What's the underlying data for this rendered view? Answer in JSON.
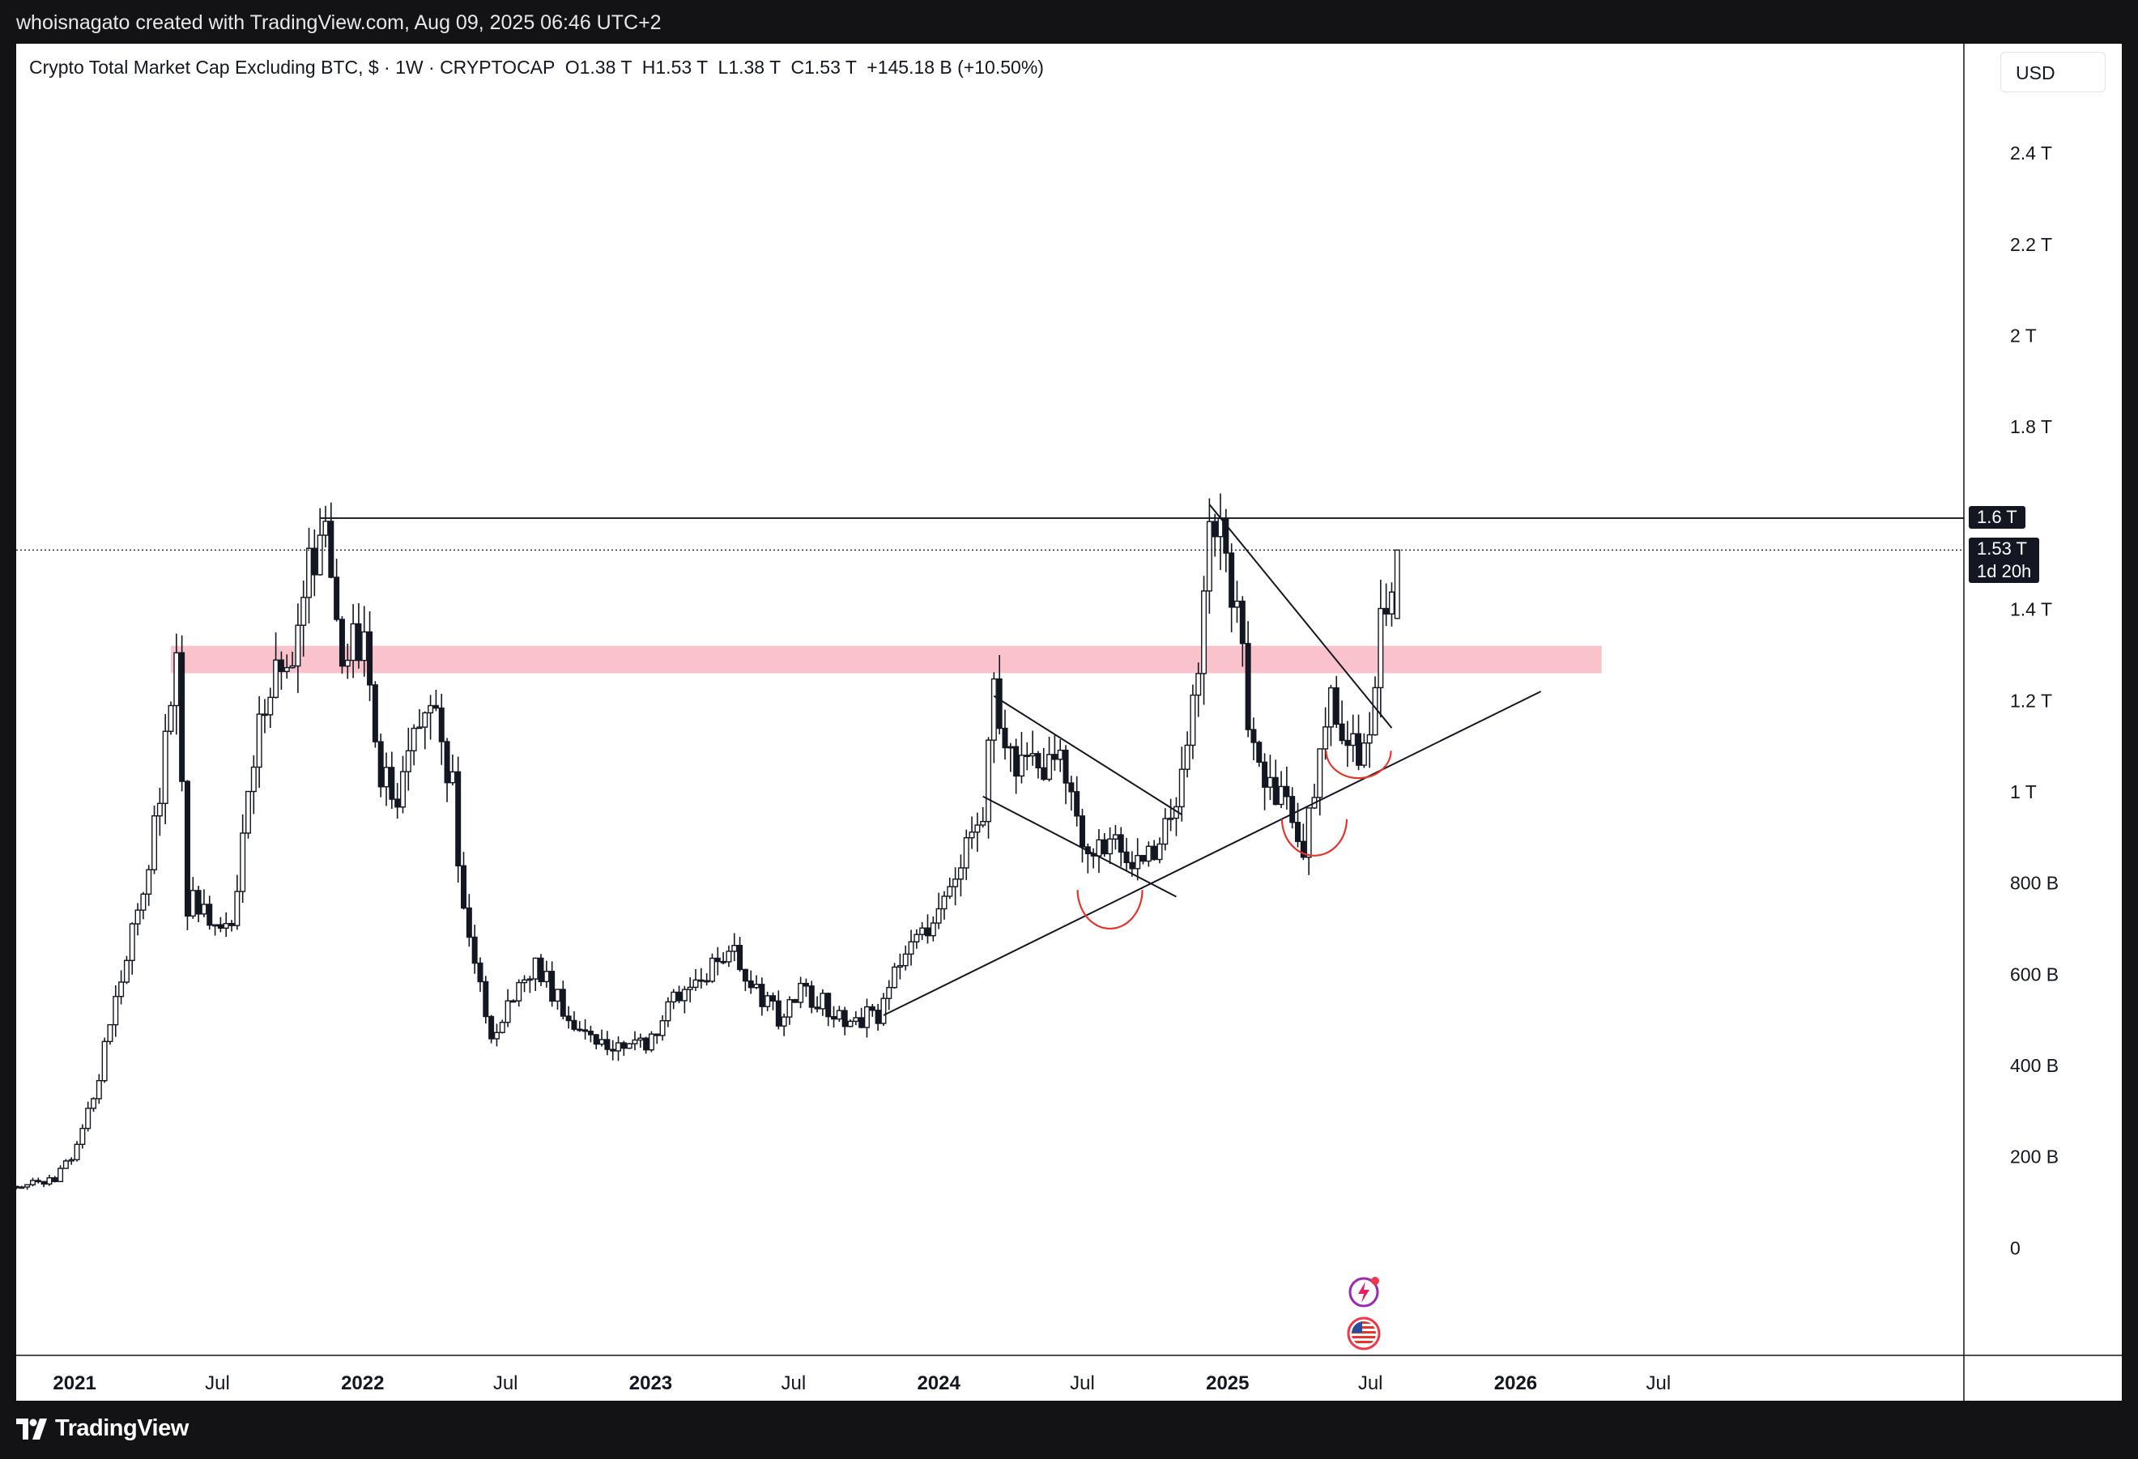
{
  "header": {
    "credit": "whoisnagato created with TradingView.com, Aug 09, 2025 06:46 UTC+2"
  },
  "legend": {
    "title": "Crypto Total Market Cap Excluding BTC, $",
    "interval": "1W",
    "exchange": "CRYPTOCAP",
    "open": "O1.38 T",
    "high": "H1.53 T",
    "low": "L1.38 T",
    "close": "C1.53 T",
    "change": "+145.18 B (+10.50%)"
  },
  "toolbar": {
    "currency_label": "USD"
  },
  "brand": {
    "name": "TradingView"
  },
  "price_tags": {
    "level_label": "1.6 T",
    "last_price": "1.53 T",
    "countdown": "1d 20h"
  },
  "icons": {
    "events": [
      "lightning-event-icon",
      "us-flag-event-icon"
    ]
  },
  "colors": {
    "frame": "#131315",
    "plot_background": "#ffffff",
    "candle": "#131722",
    "zone": "#f7a1ad",
    "arc": "#e5352b",
    "tag": "#131722"
  },
  "chart_data": {
    "type": "candlestick",
    "title": "Crypto Total Market Cap Excluding BTC, $",
    "interval": "1W",
    "source": "CRYPTOCAP",
    "currency": "USD",
    "y_axis": {
      "ticks": [
        {
          "value": 0,
          "label": "0"
        },
        {
          "value": 200,
          "label": "200 B"
        },
        {
          "value": 400,
          "label": "400 B"
        },
        {
          "value": 600,
          "label": "600 B"
        },
        {
          "value": 800,
          "label": "800 B"
        },
        {
          "value": 1000,
          "label": "1 T"
        },
        {
          "value": 1200,
          "label": "1.2 T"
        },
        {
          "value": 1400,
          "label": "1.4 T"
        },
        {
          "value": 1800,
          "label": "1.8 T"
        },
        {
          "value": 2000,
          "label": "2 T"
        },
        {
          "value": 2200,
          "label": "2.2 T"
        },
        {
          "value": 2400,
          "label": "2.4 T"
        }
      ],
      "range": [
        -200,
        2640
      ],
      "unit": "billion USD"
    },
    "x_axis": {
      "ticks": [
        {
          "date": "2021-01-01",
          "label": "2021",
          "bold": true
        },
        {
          "date": "2021-07-01",
          "label": "Jul",
          "bold": false
        },
        {
          "date": "2022-01-01",
          "label": "2022",
          "bold": true
        },
        {
          "date": "2022-07-01",
          "label": "Jul",
          "bold": false
        },
        {
          "date": "2023-01-01",
          "label": "2023",
          "bold": true
        },
        {
          "date": "2023-07-01",
          "label": "Jul",
          "bold": false
        },
        {
          "date": "2024-01-01",
          "label": "2024",
          "bold": true
        },
        {
          "date": "2024-07-01",
          "label": "Jul",
          "bold": false
        },
        {
          "date": "2025-01-01",
          "label": "2025",
          "bold": true
        },
        {
          "date": "2025-07-01",
          "label": "Jul",
          "bold": false
        },
        {
          "date": "2026-01-01",
          "label": "2026",
          "bold": true
        },
        {
          "date": "2026-07-01",
          "label": "Jul",
          "bold": false
        }
      ],
      "range": [
        "2020-10-19",
        "2026-08-03"
      ]
    },
    "anchors": [
      [
        "2020-10-19",
        135
      ],
      [
        "2020-12-07",
        150
      ],
      [
        "2021-01-04",
        220
      ],
      [
        "2021-02-01",
        380
      ],
      [
        "2021-02-22",
        560
      ],
      [
        "2021-03-22",
        720
      ],
      [
        "2021-04-19",
        1000
      ],
      [
        "2021-05-10",
        1300
      ],
      [
        "2021-05-24",
        760
      ],
      [
        "2021-06-21",
        720
      ],
      [
        "2021-07-19",
        700
      ],
      [
        "2021-08-16",
        1050
      ],
      [
        "2021-09-06",
        1260
      ],
      [
        "2021-10-04",
        1250
      ],
      [
        "2021-11-01",
        1540
      ],
      [
        "2021-11-08",
        1600
      ],
      [
        "2021-12-06",
        1320
      ],
      [
        "2022-01-03",
        1300
      ],
      [
        "2022-01-24",
        1050
      ],
      [
        "2022-02-14",
        980
      ],
      [
        "2022-03-28",
        1220
      ],
      [
        "2022-04-25",
        1000
      ],
      [
        "2022-05-09",
        720
      ],
      [
        "2022-06-13",
        470
      ],
      [
        "2022-08-08",
        620
      ],
      [
        "2022-09-19",
        510
      ],
      [
        "2022-11-07",
        440
      ],
      [
        "2022-12-26",
        450
      ],
      [
        "2023-02-06",
        560
      ],
      [
        "2023-04-17",
        640
      ],
      [
        "2023-06-12",
        500
      ],
      [
        "2023-07-10",
        560
      ],
      [
        "2023-09-11",
        500
      ],
      [
        "2023-10-16",
        510
      ],
      [
        "2023-11-13",
        620
      ],
      [
        "2024-01-01",
        740
      ],
      [
        "2024-02-26",
        980
      ],
      [
        "2024-03-11",
        1200
      ],
      [
        "2024-04-15",
        1040
      ],
      [
        "2024-06-03",
        1060
      ],
      [
        "2024-07-01",
        880
      ],
      [
        "2024-08-05",
        900
      ],
      [
        "2024-09-09",
        830
      ],
      [
        "2024-10-28",
        940
      ],
      [
        "2024-11-25",
        1300
      ],
      [
        "2024-12-09",
        1630
      ],
      [
        "2025-01-06",
        1450
      ],
      [
        "2025-02-03",
        1100
      ],
      [
        "2025-03-10",
        980
      ],
      [
        "2025-04-07",
        880
      ],
      [
        "2025-05-12",
        1200
      ],
      [
        "2025-06-23",
        1060
      ],
      [
        "2025-07-14",
        1340
      ],
      [
        "2025-08-04",
        1530
      ]
    ],
    "last_candle": {
      "date": "2025-08-04",
      "open": 1380,
      "high": 1530,
      "low": 1380,
      "close": 1530
    },
    "resistance_line": {
      "price": 1600,
      "from": "2021-11-08",
      "to": "2026-08-03",
      "label": "1.6 T"
    },
    "last_price_line": {
      "price": 1530,
      "label": "1.53 T",
      "countdown": "1d 20h"
    },
    "zone": {
      "from": "2021-05-03",
      "to": "2026-04-20",
      "low": 1260,
      "high": 1320
    },
    "trendlines": [
      {
        "name": "ascending-support",
        "from": [
          "2023-10-23",
          510
        ],
        "to": [
          "2026-02-02",
          1220
        ]
      },
      {
        "name": "flag-upper",
        "from": [
          "2024-03-11",
          1210
        ],
        "to": [
          "2024-11-04",
          950
        ]
      },
      {
        "name": "flag-lower",
        "from": [
          "2024-02-26",
          990
        ],
        "to": [
          "2024-10-28",
          770
        ]
      },
      {
        "name": "descending-resistance",
        "from": [
          "2024-12-09",
          1630
        ],
        "to": [
          "2025-07-28",
          1140
        ]
      }
    ],
    "arcs": [
      {
        "center": [
          "2024-08-05",
          700
        ],
        "rx": 5,
        "ry": 85
      },
      {
        "center": [
          "2025-04-21",
          860
        ],
        "rx": 5,
        "ry": 80
      },
      {
        "center": [
          "2025-06-16",
          1030
        ],
        "rx": 5,
        "ry": 60
      }
    ]
  }
}
